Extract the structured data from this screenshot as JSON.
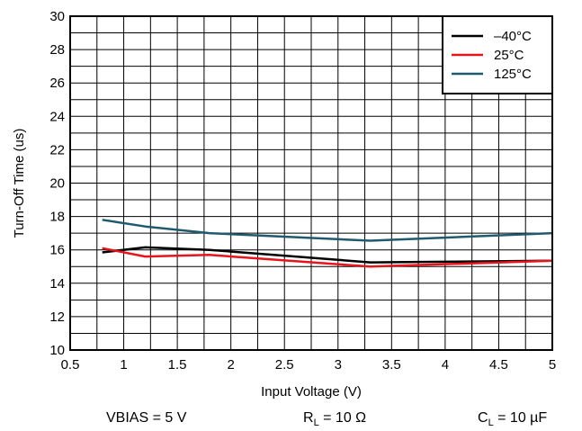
{
  "chart_data": {
    "type": "line",
    "xlabel": "Input Voltage (V)",
    "ylabel": "Turn-Off Time (us)",
    "xlim": [
      0.5,
      5
    ],
    "ylim": [
      10,
      30
    ],
    "x_ticks": [
      0.5,
      1,
      1.5,
      2,
      2.5,
      3,
      3.5,
      4,
      4.5,
      5
    ],
    "x_tick_labels": [
      "0.5",
      "1",
      "1.5",
      "2",
      "2.5",
      "3",
      "3.5",
      "4",
      "4.5",
      "5"
    ],
    "y_ticks": [
      10,
      12,
      14,
      16,
      18,
      20,
      22,
      24,
      26,
      28,
      30
    ],
    "y_tick_labels": [
      "10",
      "12",
      "14",
      "16",
      "18",
      "20",
      "22",
      "24",
      "26",
      "28",
      "30"
    ],
    "grid": true,
    "minor_x_step": 0.25,
    "minor_y_step": 1,
    "legend_position": "top-right",
    "series": [
      {
        "name": "–40°C",
        "color": "#000000",
        "x": [
          0.8,
          1.2,
          1.8,
          3.3,
          5.0
        ],
        "y": [
          15.85,
          16.15,
          16.0,
          15.25,
          15.35
        ]
      },
      {
        "name": "25°C",
        "color": "#e8141c",
        "x": [
          0.8,
          1.2,
          1.8,
          3.3,
          5.0
        ],
        "y": [
          16.1,
          15.6,
          15.7,
          15.0,
          15.35
        ]
      },
      {
        "name": "125°C",
        "color": "#1f5a6e",
        "x": [
          0.8,
          1.2,
          1.8,
          3.3,
          5.0
        ],
        "y": [
          17.8,
          17.4,
          17.0,
          16.55,
          17.0
        ]
      }
    ]
  },
  "captions": {
    "vbias": "VBIAS = 5 V",
    "rl_prefix": "R",
    "rl_sub": "L",
    "rl_value": " = 10 Ω",
    "cl_prefix": "C",
    "cl_sub": "L",
    "cl_value": " = 10 µF"
  }
}
